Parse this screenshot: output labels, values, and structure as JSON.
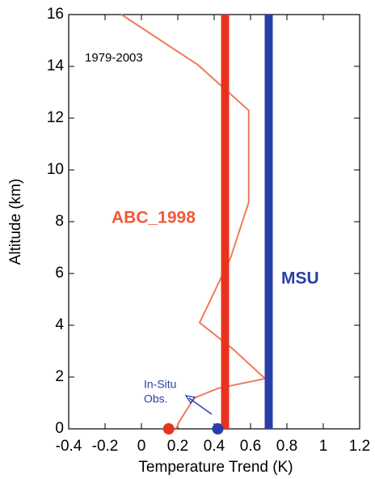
{
  "chart_data": {
    "type": "line",
    "xlabel": "Temperature Trend (K)",
    "ylabel": "Altitude (km)",
    "xlim": [
      -0.4,
      1.2
    ],
    "xticks": [
      -0.4,
      -0.2,
      0,
      0.2,
      0.4,
      0.6,
      0.8,
      1,
      1.2
    ],
    "ylim": [
      0,
      16
    ],
    "yticks": [
      0,
      2,
      4,
      6,
      8,
      10,
      12,
      14,
      16
    ],
    "series": [
      {
        "color": "#f07a5a",
        "x": [
          -0.11,
          0.31,
          0.59,
          0.59,
          0.49,
          0.32,
          0.5,
          0.68,
          0.42,
          0.29,
          0.21,
          0.19
        ],
        "y": [
          16,
          14.06,
          12.3,
          8.75,
          6.6,
          4.1,
          3.1,
          1.94,
          1.56,
          1.19,
          0.3,
          0
        ]
      }
    ],
    "vlines": [
      {
        "value": 0.46,
        "color": "#e8321e"
      },
      {
        "value": 0.7,
        "color": "#2a3ea8"
      }
    ],
    "points": [
      {
        "x": 0.15,
        "y": 0,
        "color": "#e8321e"
      },
      {
        "x": 0.42,
        "y": 0,
        "color": "#2a3ea8"
      }
    ],
    "annotations": [
      {
        "text": "1979-2003",
        "color": "#000000"
      },
      {
        "text": "ABC_1998",
        "color": "#f05a3a"
      },
      {
        "text": "MSU",
        "color": "#2a3ea8"
      },
      {
        "text": "In-Situ",
        "color": "#2a3ea8"
      },
      {
        "text": "Obs.",
        "color": "#2a3ea8"
      }
    ]
  }
}
